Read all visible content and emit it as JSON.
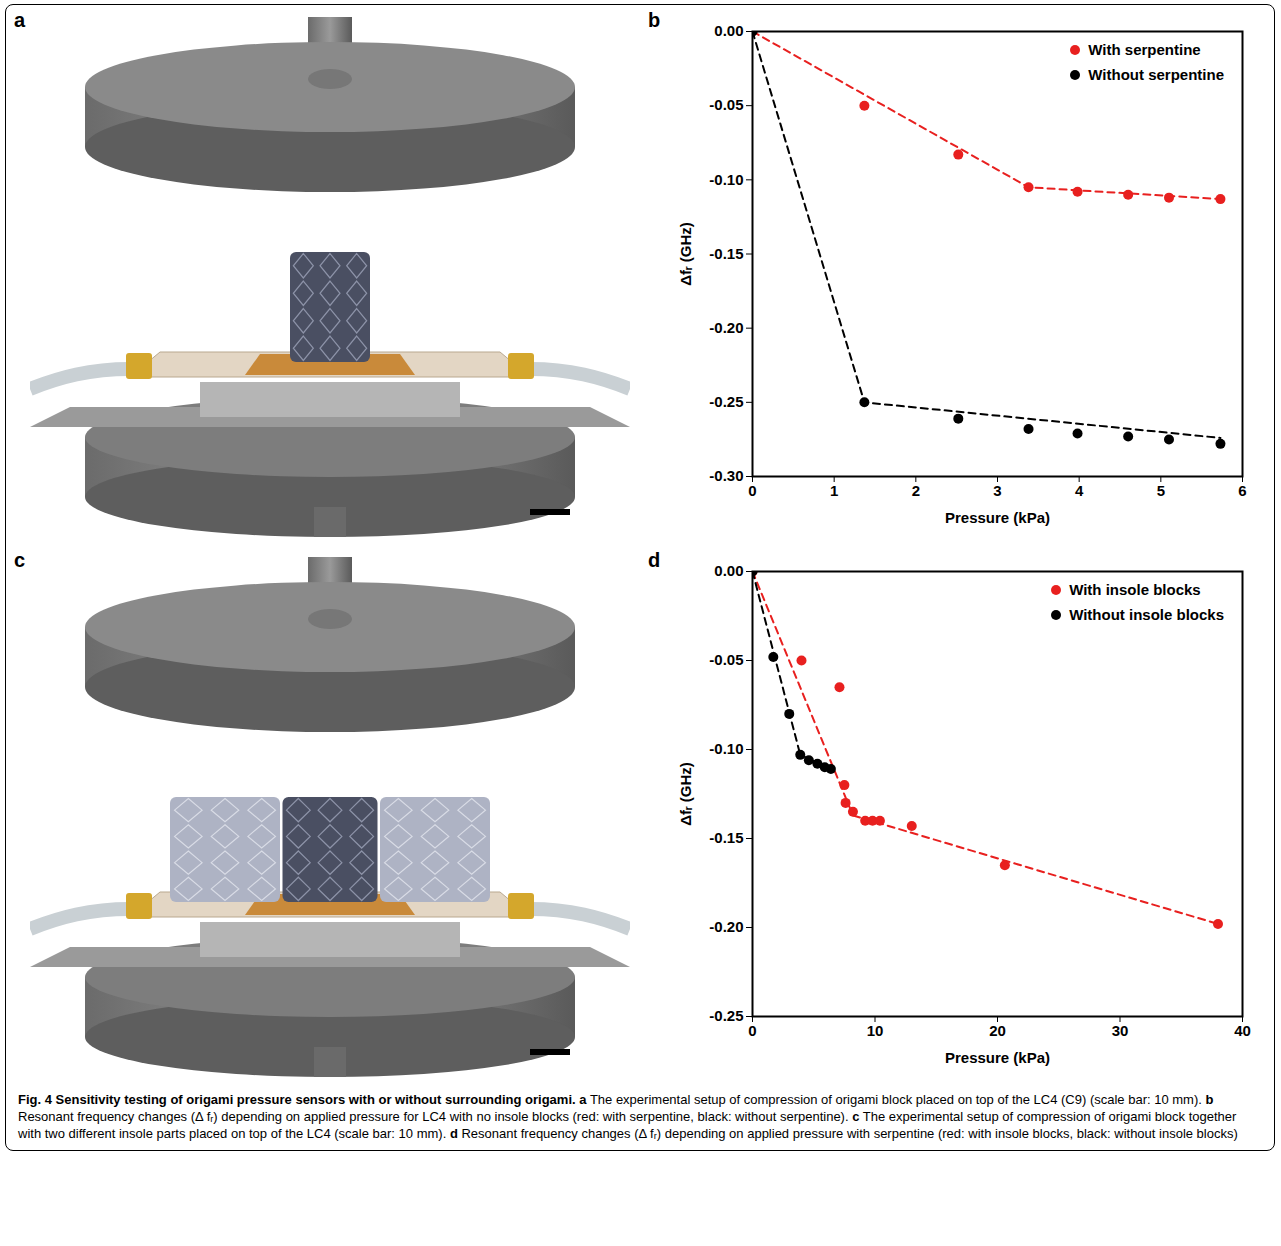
{
  "chart_data": [
    {
      "type": "scatter",
      "panel": "b",
      "x_label": "Pressure (kPa)",
      "y_label": "Δfᵣ (GHz)",
      "xlim": [
        0,
        6
      ],
      "xticks": [
        0,
        1,
        2,
        3,
        4,
        5,
        6
      ],
      "ylim": [
        -0.3,
        0
      ],
      "yticks": [
        {
          "value": -0.3,
          "label": "-0.30"
        },
        {
          "value": -0.25,
          "label": "-0.25"
        },
        {
          "value": -0.2,
          "label": "-0.20"
        },
        {
          "value": -0.15,
          "label": "-0.15"
        },
        {
          "value": -0.1,
          "label": "-0.10"
        },
        {
          "value": -0.05,
          "label": "-0.05"
        },
        {
          "value": 0,
          "label": "0.00"
        }
      ],
      "grid": false,
      "legend": "top-right",
      "series": [
        {
          "name": "With serpentine",
          "color": "#e8201f",
          "marker": "circle",
          "line_style": "dashed",
          "x": [
            0,
            1.37,
            2.52,
            3.38,
            3.98,
            4.6,
            5.1,
            5.73
          ],
          "values": [
            0,
            -0.05,
            -0.083,
            -0.105,
            -0.108,
            -0.11,
            -0.112,
            -0.113
          ],
          "fit_x": [
            0,
            3.38,
            5.73
          ],
          "fit_values": [
            0,
            -0.105,
            -0.113
          ]
        },
        {
          "name": "Without serpentine",
          "color": "#000000",
          "marker": "circle",
          "line_style": "dashed",
          "x": [
            0,
            1.37,
            2.52,
            3.38,
            3.98,
            4.6,
            5.1,
            5.73
          ],
          "values": [
            0,
            -0.25,
            -0.261,
            -0.268,
            -0.271,
            -0.273,
            -0.275,
            -0.278
          ],
          "fit_x": [
            0,
            1.37,
            5.73
          ],
          "fit_values": [
            0,
            -0.25,
            -0.274
          ]
        }
      ]
    },
    {
      "type": "scatter",
      "panel": "d",
      "x_label": "Pressure (kPa)",
      "y_label": "Δfᵣ (GHz)",
      "xlim": [
        0,
        40
      ],
      "xticks": [
        0,
        10,
        20,
        30,
        40
      ],
      "ylim": [
        -0.25,
        0
      ],
      "yticks": [
        {
          "value": -0.25,
          "label": "-0.25"
        },
        {
          "value": -0.2,
          "label": "-0.20"
        },
        {
          "value": -0.15,
          "label": "-0.15"
        },
        {
          "value": -0.1,
          "label": "-0.10"
        },
        {
          "value": -0.05,
          "label": "-0.05"
        },
        {
          "value": 0,
          "label": "0.00"
        }
      ],
      "grid": false,
      "legend": "top-right",
      "series": [
        {
          "name": "With insole blocks",
          "color": "#e8201f",
          "marker": "circle",
          "line_style": "dashed",
          "x": [
            0,
            4.0,
            7.1,
            7.5,
            7.6,
            8.2,
            9.2,
            9.8,
            10.4,
            13.0,
            20.6,
            38.0
          ],
          "values": [
            0,
            -0.05,
            -0.065,
            -0.12,
            -0.13,
            -0.135,
            -0.14,
            -0.14,
            -0.14,
            -0.143,
            -0.165,
            -0.198
          ],
          "fit_x": [
            0,
            8.2,
            38.0
          ],
          "fit_values": [
            0,
            -0.137,
            -0.198
          ]
        },
        {
          "name": "Without insole blocks",
          "color": "#000000",
          "marker": "circle",
          "line_style": "dashed",
          "x": [
            0,
            1.7,
            3.0,
            3.9,
            4.6,
            5.3,
            5.9,
            6.4
          ],
          "values": [
            0,
            -0.048,
            -0.08,
            -0.103,
            -0.106,
            -0.108,
            -0.11,
            -0.111
          ],
          "fit_x": [
            0,
            3.9,
            6.4
          ],
          "fit_values": [
            0,
            -0.103,
            -0.111
          ]
        }
      ]
    }
  ],
  "panel_letters": [
    "a",
    "b",
    "c",
    "d"
  ],
  "caption": {
    "title": "Fig. 4 Sensitivity testing of origami pressure sensors with or without surrounding origami.",
    "parts": [
      {
        "letter": "a",
        "text": "The experimental setup of compression of origami block placed on top of the LC4 (C9) (scale bar: 10 mm)."
      },
      {
        "letter": "b",
        "text": "Resonant frequency changes (Δ fᵣ) depending on applied pressure for LC4 with no insole blocks (red: with serpentine, black: without serpentine)."
      },
      {
        "letter": "c",
        "text": "The experimental setup of compression of origami block together with two different insole parts placed on top of the LC4 (scale bar: 10 mm)."
      },
      {
        "letter": "d",
        "text": "Resonant frequency changes (Δ fᵣ) depending on applied pressure with serpentine (red: with insole blocks, black: without insole blocks)"
      }
    ]
  }
}
